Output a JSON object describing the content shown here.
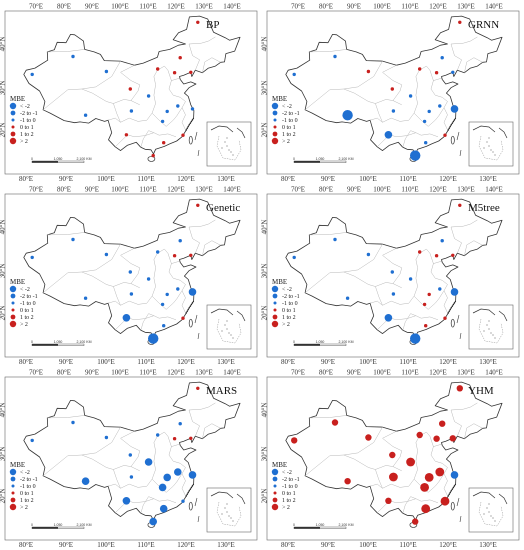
{
  "colors": {
    "blue": "#1f6fd1",
    "red": "#c8201e",
    "border": "#333333",
    "province": "#b8b8b8",
    "frame": "#666666"
  },
  "axes": {
    "top_ticks": [
      "70°E",
      "80°E",
      "90°E",
      "100°E",
      "110°E",
      "120°E",
      "130°E",
      "140°E"
    ],
    "bottom_ticks": [
      "80°E",
      "90°E",
      "100°E",
      "110°E",
      "120°E",
      "130°E"
    ],
    "left_ticks": [
      "40°N",
      "30°N",
      "20°N"
    ]
  },
  "legend": {
    "title": "MBE",
    "items": [
      {
        "label": "< -2",
        "color": "blue",
        "size": 3.2
      },
      {
        "label": "-2 to -1",
        "color": "blue",
        "size": 2.4
      },
      {
        "label": "-1 to 0",
        "color": "blue",
        "size": 1.5
      },
      {
        "label": "0 to 1",
        "color": "red",
        "size": 1.5
      },
      {
        "label": "1 to 2",
        "color": "red",
        "size": 2.4
      },
      {
        "label": "> 2",
        "color": "red",
        "size": 3.2
      }
    ]
  },
  "scalebar": {
    "zero": "0",
    "mid": "1,050",
    "end": "2,100 KM"
  },
  "panels": [
    {
      "name": "BP",
      "stations": [
        {
          "lon": 123.0,
          "lat": 52.0,
          "c": 3
        },
        {
          "lon": 118.0,
          "lat": 43.5,
          "c": 3
        },
        {
          "lon": 121.0,
          "lat": 40.0,
          "c": 3
        },
        {
          "lon": 87.5,
          "lat": 43.8,
          "c": 2
        },
        {
          "lon": 75.9,
          "lat": 39.5,
          "c": 2
        },
        {
          "lon": 97.0,
          "lat": 40.2,
          "c": 2
        },
        {
          "lon": 103.8,
          "lat": 36.0,
          "c": 3
        },
        {
          "lon": 111.6,
          "lat": 40.8,
          "c": 3
        },
        {
          "lon": 116.4,
          "lat": 39.9,
          "c": 3
        },
        {
          "lon": 117.3,
          "lat": 31.9,
          "c": 2
        },
        {
          "lon": 121.5,
          "lat": 31.2,
          "c": 2
        },
        {
          "lon": 114.3,
          "lat": 30.6,
          "c": 2
        },
        {
          "lon": 104.1,
          "lat": 30.7,
          "c": 2
        },
        {
          "lon": 91.1,
          "lat": 29.7,
          "c": 2
        },
        {
          "lon": 102.7,
          "lat": 25.0,
          "c": 3
        },
        {
          "lon": 113.3,
          "lat": 23.1,
          "c": 3
        },
        {
          "lon": 110.3,
          "lat": 20.0,
          "c": 3
        },
        {
          "lon": 109.0,
          "lat": 34.3,
          "c": 2
        },
        {
          "lon": 113.0,
          "lat": 28.2,
          "c": 2
        },
        {
          "lon": 118.8,
          "lat": 24.9,
          "c": 3
        }
      ]
    },
    {
      "name": "GRNN",
      "stations": [
        {
          "lon": 123.0,
          "lat": 52.0,
          "c": 3
        },
        {
          "lon": 118.0,
          "lat": 43.5,
          "c": 2
        },
        {
          "lon": 121.0,
          "lat": 40.0,
          "c": 2
        },
        {
          "lon": 87.5,
          "lat": 43.8,
          "c": 2
        },
        {
          "lon": 75.9,
          "lat": 39.5,
          "c": 2
        },
        {
          "lon": 97.0,
          "lat": 40.2,
          "c": 3
        },
        {
          "lon": 103.8,
          "lat": 36.0,
          "c": 3
        },
        {
          "lon": 111.6,
          "lat": 40.8,
          "c": 3
        },
        {
          "lon": 116.4,
          "lat": 39.9,
          "c": 3
        },
        {
          "lon": 117.3,
          "lat": 31.9,
          "c": 2
        },
        {
          "lon": 121.5,
          "lat": 31.2,
          "c": 1
        },
        {
          "lon": 114.3,
          "lat": 30.6,
          "c": 2
        },
        {
          "lon": 104.1,
          "lat": 30.7,
          "c": 2
        },
        {
          "lon": 91.1,
          "lat": 29.7,
          "c": 0
        },
        {
          "lon": 102.7,
          "lat": 25.0,
          "c": 1
        },
        {
          "lon": 113.3,
          "lat": 23.1,
          "c": 2
        },
        {
          "lon": 110.3,
          "lat": 20.0,
          "c": 0
        },
        {
          "lon": 109.0,
          "lat": 34.3,
          "c": 2
        },
        {
          "lon": 113.0,
          "lat": 28.2,
          "c": 2
        },
        {
          "lon": 118.8,
          "lat": 24.9,
          "c": 3
        }
      ]
    },
    {
      "name": "Genetic",
      "stations": [
        {
          "lon": 123.0,
          "lat": 52.0,
          "c": 3
        },
        {
          "lon": 118.0,
          "lat": 43.5,
          "c": 2
        },
        {
          "lon": 121.0,
          "lat": 40.0,
          "c": 3
        },
        {
          "lon": 87.5,
          "lat": 43.8,
          "c": 2
        },
        {
          "lon": 75.9,
          "lat": 39.5,
          "c": 2
        },
        {
          "lon": 97.0,
          "lat": 40.2,
          "c": 2
        },
        {
          "lon": 103.8,
          "lat": 36.0,
          "c": 2
        },
        {
          "lon": 111.6,
          "lat": 40.8,
          "c": 2
        },
        {
          "lon": 116.4,
          "lat": 39.9,
          "c": 3
        },
        {
          "lon": 117.3,
          "lat": 31.9,
          "c": 2
        },
        {
          "lon": 121.5,
          "lat": 31.2,
          "c": 1
        },
        {
          "lon": 114.3,
          "lat": 30.6,
          "c": 2
        },
        {
          "lon": 104.1,
          "lat": 30.7,
          "c": 2
        },
        {
          "lon": 91.1,
          "lat": 29.7,
          "c": 2
        },
        {
          "lon": 102.7,
          "lat": 25.0,
          "c": 1
        },
        {
          "lon": 113.3,
          "lat": 23.1,
          "c": 2
        },
        {
          "lon": 110.3,
          "lat": 20.0,
          "c": 0
        },
        {
          "lon": 109.0,
          "lat": 34.3,
          "c": 2
        },
        {
          "lon": 113.0,
          "lat": 28.2,
          "c": 2
        },
        {
          "lon": 118.8,
          "lat": 24.9,
          "c": 3
        }
      ]
    },
    {
      "name": "M5tree",
      "stations": [
        {
          "lon": 123.0,
          "lat": 52.0,
          "c": 3
        },
        {
          "lon": 118.0,
          "lat": 43.5,
          "c": 2
        },
        {
          "lon": 121.0,
          "lat": 40.0,
          "c": 3
        },
        {
          "lon": 87.5,
          "lat": 43.8,
          "c": 2
        },
        {
          "lon": 75.9,
          "lat": 39.5,
          "c": 2
        },
        {
          "lon": 97.0,
          "lat": 40.2,
          "c": 2
        },
        {
          "lon": 103.8,
          "lat": 36.0,
          "c": 2
        },
        {
          "lon": 111.6,
          "lat": 40.8,
          "c": 3
        },
        {
          "lon": 116.4,
          "lat": 39.9,
          "c": 3
        },
        {
          "lon": 117.3,
          "lat": 31.9,
          "c": 2
        },
        {
          "lon": 121.5,
          "lat": 31.2,
          "c": 1
        },
        {
          "lon": 114.3,
          "lat": 30.6,
          "c": 3
        },
        {
          "lon": 104.1,
          "lat": 30.7,
          "c": 2
        },
        {
          "lon": 91.1,
          "lat": 29.7,
          "c": 2
        },
        {
          "lon": 102.7,
          "lat": 25.0,
          "c": 1
        },
        {
          "lon": 113.3,
          "lat": 23.1,
          "c": 3
        },
        {
          "lon": 110.3,
          "lat": 20.0,
          "c": 0
        },
        {
          "lon": 109.0,
          "lat": 34.3,
          "c": 2
        },
        {
          "lon": 113.0,
          "lat": 28.2,
          "c": 3
        },
        {
          "lon": 118.8,
          "lat": 24.9,
          "c": 3
        }
      ]
    },
    {
      "name": "MARS",
      "stations": [
        {
          "lon": 123.0,
          "lat": 52.0,
          "c": 3
        },
        {
          "lon": 118.0,
          "lat": 43.5,
          "c": 2
        },
        {
          "lon": 121.0,
          "lat": 40.0,
          "c": 3
        },
        {
          "lon": 87.5,
          "lat": 43.8,
          "c": 2
        },
        {
          "lon": 75.9,
          "lat": 39.5,
          "c": 2
        },
        {
          "lon": 97.0,
          "lat": 40.2,
          "c": 2
        },
        {
          "lon": 103.8,
          "lat": 36.0,
          "c": 2
        },
        {
          "lon": 111.6,
          "lat": 40.8,
          "c": 2
        },
        {
          "lon": 116.4,
          "lat": 39.9,
          "c": 3
        },
        {
          "lon": 117.3,
          "lat": 31.9,
          "c": 1
        },
        {
          "lon": 121.5,
          "lat": 31.2,
          "c": 1
        },
        {
          "lon": 114.3,
          "lat": 30.6,
          "c": 1
        },
        {
          "lon": 104.1,
          "lat": 30.7,
          "c": 2
        },
        {
          "lon": 91.1,
          "lat": 29.7,
          "c": 1
        },
        {
          "lon": 102.7,
          "lat": 25.0,
          "c": 1
        },
        {
          "lon": 113.3,
          "lat": 23.1,
          "c": 1
        },
        {
          "lon": 110.3,
          "lat": 20.0,
          "c": 1
        },
        {
          "lon": 109.0,
          "lat": 34.3,
          "c": 1
        },
        {
          "lon": 113.0,
          "lat": 28.2,
          "c": 1
        },
        {
          "lon": 118.8,
          "lat": 24.9,
          "c": 2
        }
      ]
    },
    {
      "name": "YHM",
      "stations": [
        {
          "lon": 123.0,
          "lat": 52.0,
          "c": 4
        },
        {
          "lon": 118.0,
          "lat": 43.5,
          "c": 4
        },
        {
          "lon": 121.0,
          "lat": 40.0,
          "c": 4
        },
        {
          "lon": 87.5,
          "lat": 43.8,
          "c": 4
        },
        {
          "lon": 75.9,
          "lat": 39.5,
          "c": 4
        },
        {
          "lon": 97.0,
          "lat": 40.2,
          "c": 4
        },
        {
          "lon": 103.8,
          "lat": 36.0,
          "c": 4
        },
        {
          "lon": 111.6,
          "lat": 40.8,
          "c": 4
        },
        {
          "lon": 116.4,
          "lat": 39.9,
          "c": 4
        },
        {
          "lon": 117.3,
          "lat": 31.9,
          "c": 5
        },
        {
          "lon": 121.5,
          "lat": 31.2,
          "c": 1
        },
        {
          "lon": 114.3,
          "lat": 30.6,
          "c": 5
        },
        {
          "lon": 104.1,
          "lat": 30.7,
          "c": 5
        },
        {
          "lon": 91.1,
          "lat": 29.7,
          "c": 4
        },
        {
          "lon": 102.7,
          "lat": 25.0,
          "c": 4
        },
        {
          "lon": 113.3,
          "lat": 23.1,
          "c": 5
        },
        {
          "lon": 110.3,
          "lat": 20.0,
          "c": 4
        },
        {
          "lon": 109.0,
          "lat": 34.3,
          "c": 5
        },
        {
          "lon": 113.0,
          "lat": 28.2,
          "c": 5
        },
        {
          "lon": 118.8,
          "lat": 24.9,
          "c": 5
        }
      ]
    }
  ]
}
